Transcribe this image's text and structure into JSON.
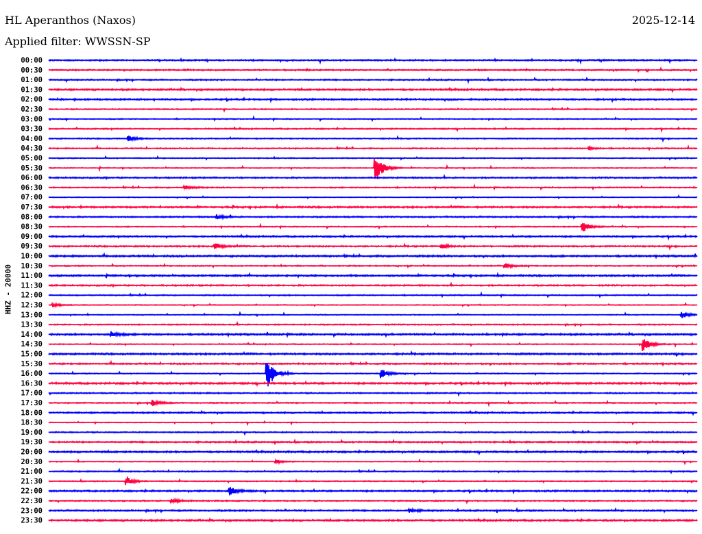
{
  "header": {
    "station": "HL Aperanthos (Naxos)",
    "date": "2025-12-14",
    "filter": "Applied filter: WWSSN-SP"
  },
  "chart_data": {
    "type": "line",
    "subtype": "helicorder",
    "title": "HL Aperanthos (Naxos)",
    "ylabel": "HHZ - 20000",
    "row_minutes": 30,
    "colors": [
      "#0000ff",
      "#ff0040"
    ],
    "rows": [
      "00:00",
      "00:30",
      "01:00",
      "01:30",
      "02:00",
      "02:30",
      "03:00",
      "03:30",
      "04:00",
      "04:30",
      "05:00",
      "05:30",
      "06:00",
      "06:30",
      "07:00",
      "07:30",
      "08:00",
      "08:30",
      "09:00",
      "09:30",
      "10:00",
      "10:30",
      "11:00",
      "11:30",
      "12:00",
      "12:30",
      "13:00",
      "13:30",
      "14:00",
      "14:30",
      "15:00",
      "15:30",
      "16:00",
      "16:30",
      "17:00",
      "17:30",
      "18:00",
      "18:30",
      "19:00",
      "19:30",
      "20:00",
      "20:30",
      "21:00",
      "21:30",
      "22:00",
      "22:30",
      "23:00",
      "23:30"
    ],
    "events": [
      {
        "row": "05:30",
        "minute": 15.1,
        "amplitude": 26
      },
      {
        "row": "16:00",
        "minute": 10.1,
        "amplitude": 24
      },
      {
        "row": "16:00",
        "minute": 15.4,
        "amplitude": 7
      },
      {
        "row": "14:30",
        "minute": 27.5,
        "amplitude": 12
      },
      {
        "row": "08:30",
        "minute": 24.7,
        "amplitude": 8
      },
      {
        "row": "21:30",
        "minute": 3.6,
        "amplitude": 6
      },
      {
        "row": "22:00",
        "minute": 8.4,
        "amplitude": 6
      },
      {
        "row": "17:30",
        "minute": 4.8,
        "amplitude": 5
      },
      {
        "row": "13:00",
        "minute": 29.3,
        "amplitude": 5
      },
      {
        "row": "14:00",
        "minute": 2.9,
        "amplitude": 4
      },
      {
        "row": "04:00",
        "minute": 3.7,
        "amplitude": 4
      },
      {
        "row": "08:00",
        "minute": 7.8,
        "amplitude": 3
      },
      {
        "row": "09:30",
        "minute": 7.7,
        "amplitude": 4
      },
      {
        "row": "09:30",
        "minute": 18.2,
        "amplitude": 3
      },
      {
        "row": "20:30",
        "minute": 10.5,
        "amplitude": 3
      },
      {
        "row": "06:30",
        "minute": 6.3,
        "amplitude": 3
      },
      {
        "row": "12:30",
        "minute": 0.2,
        "amplitude": 3
      },
      {
        "row": "22:30",
        "minute": 5.7,
        "amplitude": 3
      },
      {
        "row": "23:00",
        "minute": 16.7,
        "amplitude": 3
      },
      {
        "row": "10:30",
        "minute": 21.1,
        "amplitude": 4
      },
      {
        "row": "04:30",
        "minute": 25.0,
        "amplitude": 2
      }
    ]
  }
}
